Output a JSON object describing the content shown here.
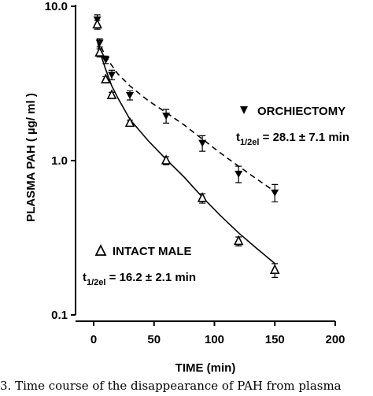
{
  "chart_data": {
    "type": "scatter",
    "xlabel": "TIME (min)",
    "ylabel": "PLASMA PAH ( µg/ ml )",
    "xlim": [
      0,
      200
    ],
    "ylim": [
      0.1,
      10.0
    ],
    "yscale": "log",
    "x_ticks": [
      "0",
      "50",
      "100",
      "150",
      "200"
    ],
    "y_ticks": [
      "0.1",
      "1.0",
      "10.0"
    ],
    "grid": false,
    "series": [
      {
        "name": "ORCHIECTOMY",
        "marker": "filled-down-triangle",
        "fit_line": "dashed",
        "half_life": {
          "prefix": "t",
          "subscript": "1/2el",
          "value": " = 28.1 ± 7.1 min"
        },
        "points": [
          {
            "x": 3,
            "y": 8.2,
            "err": 0.6
          },
          {
            "x": 5,
            "y": 5.8,
            "err": 0.35
          },
          {
            "x": 10,
            "y": 4.5,
            "err": 0.25
          },
          {
            "x": 15,
            "y": 3.6,
            "err": 0.25
          },
          {
            "x": 30,
            "y": 2.65,
            "err": 0.18
          },
          {
            "x": 60,
            "y": 1.95,
            "err": 0.2
          },
          {
            "x": 90,
            "y": 1.3,
            "err": 0.15
          },
          {
            "x": 120,
            "y": 0.82,
            "err": 0.1
          },
          {
            "x": 150,
            "y": 0.62,
            "err": 0.08
          }
        ],
        "curve": [
          [
            3,
            6.2
          ],
          [
            10,
            4.7
          ],
          [
            20,
            3.65
          ],
          [
            30,
            3.05
          ],
          [
            45,
            2.45
          ],
          [
            60,
            2.05
          ],
          [
            75,
            1.7
          ],
          [
            90,
            1.38
          ],
          [
            105,
            1.12
          ],
          [
            120,
            0.92
          ],
          [
            135,
            0.76
          ],
          [
            150,
            0.63
          ]
        ]
      },
      {
        "name": "INTACT MALE",
        "marker": "open-up-triangle",
        "fit_line": "solid",
        "half_life": {
          "prefix": "t",
          "subscript": "1/2el",
          "value": " = 16.2 ± 2.1 min"
        },
        "points": [
          {
            "x": 3,
            "y": 7.6,
            "err": 0.5
          },
          {
            "x": 5,
            "y": 5.0,
            "err": 0.3
          },
          {
            "x": 10,
            "y": 3.35,
            "err": 0.15
          },
          {
            "x": 15,
            "y": 2.65,
            "err": 0.12
          },
          {
            "x": 30,
            "y": 1.75,
            "err": 0.08
          },
          {
            "x": 60,
            "y": 1.0,
            "err": 0.06
          },
          {
            "x": 90,
            "y": 0.57,
            "err": 0.04
          },
          {
            "x": 120,
            "y": 0.3,
            "err": 0.02
          },
          {
            "x": 150,
            "y": 0.195,
            "err": 0.02
          }
        ],
        "curve": [
          [
            3,
            6.0
          ],
          [
            5,
            5.1
          ],
          [
            10,
            3.9
          ],
          [
            15,
            3.05
          ],
          [
            20,
            2.55
          ],
          [
            30,
            1.85
          ],
          [
            45,
            1.35
          ],
          [
            60,
            1.02
          ],
          [
            75,
            0.78
          ],
          [
            90,
            0.58
          ],
          [
            105,
            0.44
          ],
          [
            120,
            0.34
          ],
          [
            135,
            0.27
          ],
          [
            150,
            0.215
          ]
        ]
      }
    ]
  },
  "caption": "3. Time course of the disappearance of PAH from plasma"
}
